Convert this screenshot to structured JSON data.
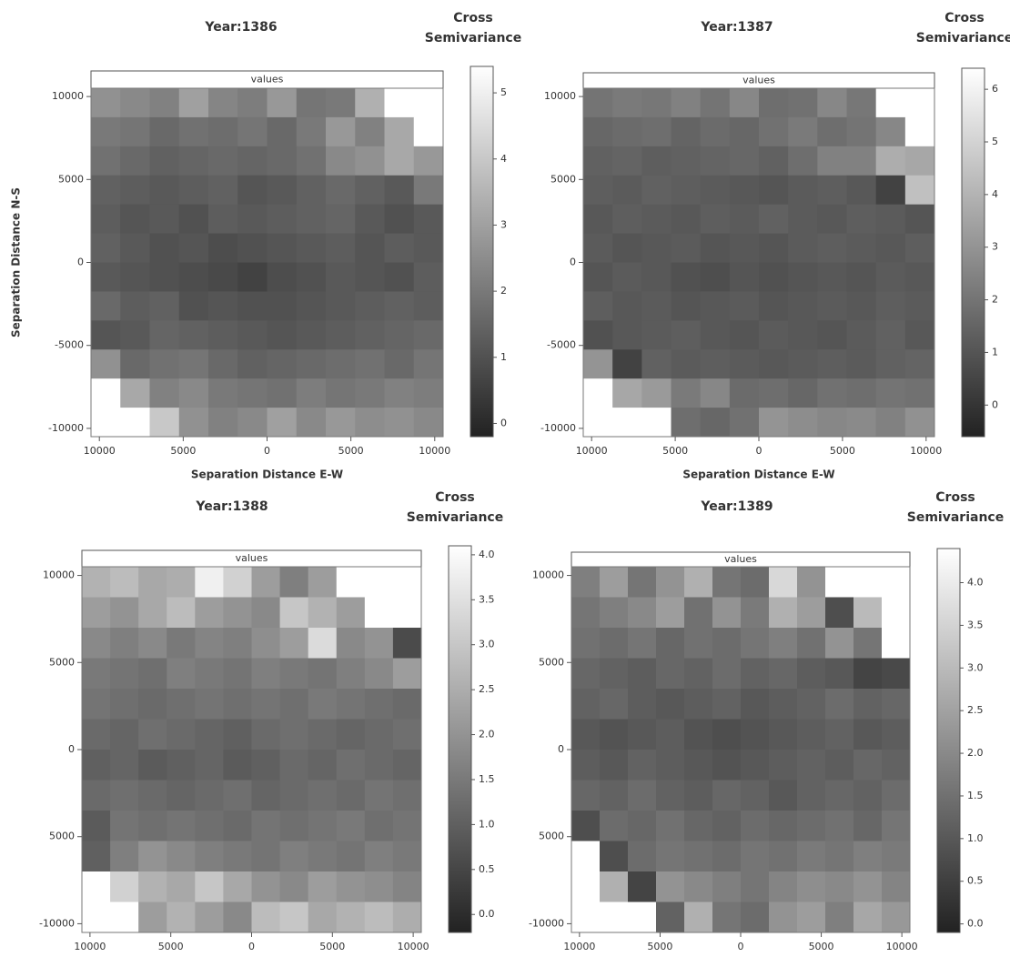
{
  "chart_data": [
    {
      "type": "heatmap",
      "title": "Year:1386",
      "colorbar_title": "Cross Semivariance",
      "strip": "values",
      "xlabel": "Separation Distance E-W",
      "ylabel": "Separation Distance N-S",
      "xlim": [
        -10500,
        10500
      ],
      "ylim": [
        -10500,
        10500
      ],
      "zlim": [
        -0.2,
        5.4
      ],
      "colormap": [
        "#222222",
        "#ffffff"
      ],
      "xticks": [
        {
          "value": -10000,
          "label": "10000"
        },
        {
          "value": -5000,
          "label": "5000"
        },
        0,
        5000,
        10000
      ],
      "yticks": [
        10000,
        5000,
        0,
        -5000,
        -10000
      ],
      "zticks": [
        0,
        1,
        2,
        3,
        4,
        5
      ],
      "z": [
        [
          2.6,
          2.4,
          2.2,
          3.0,
          2.3,
          2.1,
          2.8,
          1.9,
          2.0,
          3.4,
          5.4,
          5.4
        ],
        [
          2.0,
          1.9,
          1.6,
          1.8,
          1.7,
          1.9,
          1.6,
          2.0,
          2.8,
          2.2,
          3.2,
          5.4
        ],
        [
          1.8,
          1.6,
          1.4,
          1.5,
          1.6,
          1.5,
          1.6,
          1.8,
          2.4,
          2.6,
          3.2,
          2.8
        ],
        [
          1.4,
          1.3,
          1.2,
          1.3,
          1.4,
          1.1,
          1.2,
          1.4,
          1.6,
          1.4,
          1.2,
          2.0
        ],
        [
          1.3,
          1.1,
          1.2,
          1.0,
          1.3,
          1.2,
          1.3,
          1.4,
          1.5,
          1.2,
          1.0,
          1.2
        ],
        [
          1.4,
          1.2,
          1.0,
          1.1,
          0.9,
          1.0,
          1.1,
          1.2,
          1.3,
          1.1,
          1.3,
          1.2
        ],
        [
          1.2,
          1.1,
          1.0,
          0.9,
          0.8,
          0.6,
          0.9,
          1.0,
          1.2,
          1.1,
          1.0,
          1.3
        ],
        [
          1.6,
          1.3,
          1.4,
          1.0,
          1.1,
          1.0,
          1.0,
          1.1,
          1.2,
          1.3,
          1.4,
          1.3
        ],
        [
          1.1,
          1.2,
          1.5,
          1.4,
          1.3,
          1.2,
          1.1,
          1.2,
          1.3,
          1.4,
          1.5,
          1.6
        ],
        [
          2.6,
          1.6,
          1.8,
          1.9,
          1.6,
          1.4,
          1.5,
          1.6,
          1.7,
          1.8,
          1.6,
          1.9
        ],
        [
          5.4,
          3.2,
          2.2,
          2.4,
          2.0,
          1.9,
          1.8,
          2.1,
          1.9,
          2.0,
          2.2,
          2.1
        ],
        [
          5.4,
          5.4,
          4.0,
          2.6,
          2.2,
          2.4,
          3.0,
          2.4,
          2.8,
          2.5,
          2.6,
          2.4
        ]
      ]
    },
    {
      "type": "heatmap",
      "title": "Year:1387",
      "colorbar_title": "Cross Semivariance",
      "strip": "values",
      "xlabel": "Separation Distance E-W",
      "xlim": [
        -10500,
        10500
      ],
      "ylim": [
        -10500,
        10500
      ],
      "zlim": [
        -0.6,
        6.4
      ],
      "colormap": [
        "#222222",
        "#ffffff"
      ],
      "xticks": [
        {
          "value": -10000,
          "label": "10000"
        },
        {
          "value": -5000,
          "label": "5000"
        },
        0,
        5000,
        10000
      ],
      "yticks": [
        10000,
        5000,
        0,
        -5000,
        -10000
      ],
      "zticks": [
        0,
        1,
        2,
        3,
        4,
        5,
        6
      ],
      "z": [
        [
          2.0,
          2.2,
          2.1,
          2.4,
          2.0,
          2.6,
          1.8,
          1.9,
          2.6,
          2.1,
          6.4,
          6.4
        ],
        [
          1.6,
          1.7,
          1.8,
          1.5,
          1.7,
          1.6,
          1.9,
          2.2,
          1.8,
          2.0,
          2.6,
          6.4
        ],
        [
          1.4,
          1.5,
          1.3,
          1.4,
          1.5,
          1.6,
          1.4,
          1.8,
          2.4,
          2.4,
          3.8,
          3.6
        ],
        [
          1.3,
          1.2,
          1.4,
          1.3,
          1.2,
          1.1,
          1.0,
          1.2,
          1.3,
          1.1,
          0.4,
          4.4
        ],
        [
          1.1,
          1.3,
          1.2,
          1.1,
          1.3,
          1.2,
          1.4,
          1.2,
          1.1,
          1.3,
          1.2,
          1.0
        ],
        [
          1.2,
          1.0,
          1.1,
          1.2,
          1.0,
          1.1,
          1.0,
          1.2,
          1.3,
          1.2,
          1.1,
          1.3
        ],
        [
          1.0,
          1.2,
          1.1,
          0.9,
          0.8,
          1.0,
          0.9,
          1.0,
          1.1,
          1.0,
          1.2,
          1.1
        ],
        [
          1.3,
          1.1,
          1.2,
          1.0,
          1.1,
          1.2,
          1.0,
          1.1,
          1.2,
          1.1,
          1.3,
          1.2
        ],
        [
          0.9,
          1.1,
          1.2,
          1.3,
          1.1,
          1.0,
          1.2,
          1.1,
          1.0,
          1.2,
          1.4,
          1.1
        ],
        [
          3.0,
          0.4,
          1.4,
          1.2,
          1.3,
          1.2,
          1.1,
          1.2,
          1.3,
          1.2,
          1.4,
          1.5
        ],
        [
          6.4,
          3.6,
          3.2,
          2.2,
          2.6,
          1.7,
          1.8,
          1.6,
          1.9,
          1.8,
          2.0,
          1.9
        ],
        [
          6.4,
          6.4,
          6.4,
          1.8,
          1.6,
          1.9,
          3.0,
          2.8,
          2.6,
          2.7,
          2.4,
          2.9
        ]
      ]
    },
    {
      "type": "heatmap",
      "title": "Year:1388",
      "colorbar_title": "Cross Semivariance",
      "strip": "values",
      "xlabel": "Separation Distance E-W",
      "xlim": [
        -10500,
        10500
      ],
      "ylim": [
        -10500,
        10500
      ],
      "zlim": [
        -0.2,
        4.1
      ],
      "colormap": [
        "#222222",
        "#ffffff"
      ],
      "xticks": [
        {
          "value": -10000,
          "label": "10000"
        },
        {
          "value": -5000,
          "label": "5000"
        },
        0,
        5000,
        10000
      ],
      "yticks": [
        10000,
        {
          "value": 5000,
          "label": "5000"
        },
        0,
        {
          "value": -5000,
          "label": "5000"
        },
        -10000
      ],
      "zticks": [
        {
          "value": 0,
          "label": "0.0"
        },
        0.5,
        {
          "value": 1,
          "label": "1.0"
        },
        1.5,
        {
          "value": 2,
          "label": "2.0"
        },
        2.5,
        {
          "value": 3,
          "label": "3.0"
        },
        3.5,
        {
          "value": 4,
          "label": "4.0"
        }
      ],
      "z": [
        [
          2.6,
          2.8,
          2.4,
          2.5,
          3.8,
          3.2,
          2.2,
          1.6,
          2.2,
          4.1,
          4.1,
          4.1
        ],
        [
          2.2,
          2.0,
          2.4,
          2.8,
          2.2,
          2.0,
          1.8,
          3.0,
          2.6,
          2.2,
          4.1,
          4.1
        ],
        [
          1.8,
          1.6,
          1.8,
          1.5,
          1.7,
          1.6,
          1.9,
          2.2,
          3.4,
          1.8,
          2.0,
          0.6
        ],
        [
          1.5,
          1.4,
          1.3,
          1.6,
          1.5,
          1.4,
          1.6,
          1.5,
          1.4,
          1.6,
          1.8,
          2.2
        ],
        [
          1.4,
          1.3,
          1.2,
          1.3,
          1.4,
          1.3,
          1.4,
          1.3,
          1.5,
          1.4,
          1.3,
          1.2
        ],
        [
          1.2,
          1.1,
          1.3,
          1.2,
          1.1,
          1.0,
          1.2,
          1.3,
          1.2,
          1.1,
          1.2,
          1.3
        ],
        [
          1.0,
          1.1,
          0.9,
          1.0,
          1.1,
          0.9,
          1.0,
          1.2,
          1.1,
          1.3,
          1.2,
          1.1
        ],
        [
          1.2,
          1.3,
          1.2,
          1.1,
          1.2,
          1.3,
          1.1,
          1.2,
          1.3,
          1.2,
          1.4,
          1.3
        ],
        [
          0.9,
          1.4,
          1.3,
          1.4,
          1.3,
          1.2,
          1.4,
          1.3,
          1.4,
          1.5,
          1.3,
          1.4
        ],
        [
          1.0,
          1.6,
          2.0,
          1.8,
          1.6,
          1.5,
          1.4,
          1.6,
          1.5,
          1.4,
          1.6,
          1.5
        ],
        [
          4.1,
          3.2,
          2.6,
          2.4,
          3.0,
          2.4,
          2.0,
          1.8,
          2.2,
          2.0,
          1.9,
          1.7
        ],
        [
          4.1,
          4.1,
          2.2,
          2.6,
          2.2,
          1.8,
          2.8,
          3.0,
          2.4,
          2.6,
          2.8,
          2.5
        ]
      ]
    },
    {
      "type": "heatmap",
      "title": "Year:1389",
      "colorbar_title": "Cross Semivariance",
      "strip": "values",
      "xlabel": "Separation Distance E-W",
      "xlim": [
        -10500,
        10500
      ],
      "ylim": [
        -10500,
        10500
      ],
      "zlim": [
        -0.1,
        4.4
      ],
      "colormap": [
        "#222222",
        "#ffffff"
      ],
      "xticks": [
        {
          "value": -10000,
          "label": "10000"
        },
        {
          "value": -5000,
          "label": "5000"
        },
        0,
        5000,
        10000
      ],
      "yticks": [
        10000,
        5000,
        0,
        {
          "value": -5000,
          "label": "5000"
        },
        -10000
      ],
      "zticks": [
        {
          "value": 0,
          "label": "0.0"
        },
        0.5,
        {
          "value": 1,
          "label": "1.0"
        },
        1.5,
        {
          "value": 2,
          "label": "2.0"
        },
        2.5,
        {
          "value": 3,
          "label": "3.0"
        },
        3.5,
        {
          "value": 4,
          "label": "4.0"
        }
      ],
      "z": [
        [
          1.8,
          2.4,
          1.6,
          2.2,
          2.8,
          1.6,
          1.4,
          3.6,
          2.2,
          4.4,
          4.4,
          4.4
        ],
        [
          1.6,
          1.8,
          2.0,
          2.4,
          1.5,
          2.2,
          1.7,
          2.8,
          2.4,
          0.8,
          3.0,
          4.4
        ],
        [
          1.5,
          1.4,
          1.6,
          1.3,
          1.5,
          1.4,
          1.6,
          1.8,
          1.5,
          2.2,
          1.6,
          4.4
        ],
        [
          1.3,
          1.2,
          1.1,
          1.3,
          1.2,
          1.4,
          1.2,
          1.3,
          1.1,
          1.0,
          0.6,
          0.7
        ],
        [
          1.2,
          1.3,
          1.1,
          1.0,
          1.1,
          1.2,
          1.0,
          1.1,
          1.2,
          1.4,
          1.2,
          1.3
        ],
        [
          1.0,
          0.9,
          1.0,
          1.1,
          0.9,
          0.8,
          0.9,
          1.0,
          1.1,
          1.2,
          1.0,
          1.1
        ],
        [
          1.1,
          1.0,
          1.2,
          1.1,
          1.0,
          0.9,
          1.0,
          1.1,
          1.2,
          1.1,
          1.3,
          1.2
        ],
        [
          1.3,
          1.2,
          1.4,
          1.2,
          1.1,
          1.3,
          1.2,
          1.0,
          1.2,
          1.3,
          1.2,
          1.4
        ],
        [
          0.8,
          1.4,
          1.3,
          1.5,
          1.3,
          1.2,
          1.4,
          1.3,
          1.4,
          1.5,
          1.3,
          1.6
        ],
        [
          4.4,
          0.8,
          1.4,
          1.6,
          1.5,
          1.4,
          1.6,
          1.5,
          1.7,
          1.6,
          1.8,
          1.7
        ],
        [
          4.4,
          2.8,
          0.6,
          2.2,
          2.0,
          1.8,
          1.6,
          1.9,
          2.1,
          2.0,
          2.2,
          1.9
        ],
        [
          4.4,
          4.4,
          4.4,
          1.2,
          2.8,
          1.6,
          1.4,
          2.2,
          2.4,
          1.8,
          2.6,
          2.3
        ]
      ]
    }
  ]
}
